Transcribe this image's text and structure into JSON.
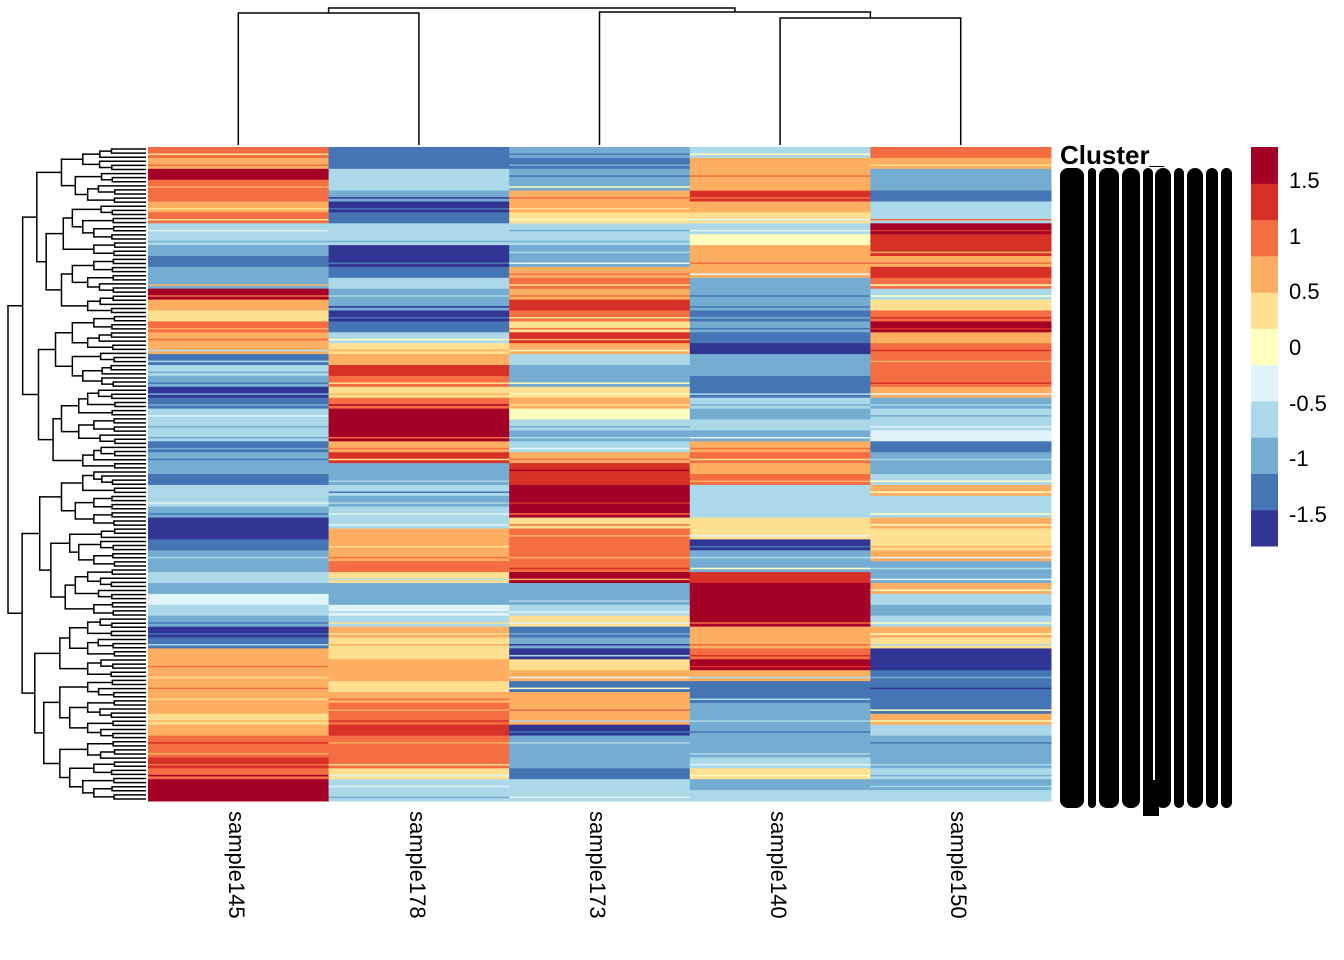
{
  "chart_data": {
    "type": "heatmap",
    "title": "",
    "columns": [
      "sample145",
      "sample178",
      "sample173",
      "sample140",
      "sample150"
    ],
    "row_label_prefix": "Cluster_",
    "row_labels_note_visible": "overlapping illegible row labels",
    "color_scale": {
      "min": -1.78,
      "max": 1.79,
      "colors": [
        "#313695",
        "#4575B4",
        "#74ADD1",
        "#ABD9E9",
        "#E0F3F8",
        "#FFFFBF",
        "#FEE090",
        "#FDAE61",
        "#F46D43",
        "#D73027",
        "#A50026"
      ]
    },
    "legend": {
      "position": "right",
      "ticks": [
        1.5,
        1,
        0.5,
        0,
        -0.5,
        -1,
        -1.5
      ],
      "tick_labels": [
        "1.5",
        "1",
        "0.5",
        "0",
        "-0.5",
        "-1",
        "-1.5"
      ]
    },
    "column_dendrogram": true,
    "row_dendrogram": true,
    "values": [
      [
        1.0,
        0.5,
        1.7,
        0.9,
        0.9,
        0.5,
        1.0,
        -0.6,
        -0.5,
        -1.0,
        -1.3,
        -1.0,
        -0.9,
        1.7,
        0.7,
        0.3,
        0.9,
        0.6,
        0.6,
        -1.3,
        -0.6,
        -1.0,
        -1.5,
        -1.2,
        -0.7,
        -0.5,
        -0.8,
        -1.3,
        -1.1,
        -1.0,
        -1.2,
        -0.7,
        -0.5,
        -0.9,
        -1.6,
        -1.8,
        -1.4,
        -0.9,
        -1.0,
        -0.8,
        -1.0,
        -0.2,
        -0.7,
        -1.0,
        -1.5,
        -1.2,
        0.5,
        0.6,
        0.5,
        0.7,
        0.7,
        0.8,
        0.3,
        0.6,
        1.0,
        1.0,
        1.2,
        1.0,
        1.7,
        1.7
      ],
      [
        -1.2,
        -1.4,
        -0.6,
        -0.8,
        -1.0,
        -1.7,
        -1.2,
        -0.6,
        -0.8,
        -1.5,
        -1.7,
        -1.4,
        -0.6,
        -0.9,
        -1.0,
        -1.7,
        -1.2,
        -0.7,
        0.4,
        0.6,
        1.2,
        0.9,
        0.3,
        1.1,
        1.8,
        1.8,
        1.8,
        0.6,
        1.2,
        -0.9,
        -1.0,
        -0.8,
        -0.9,
        -0.6,
        -0.8,
        0.6,
        0.5,
        0.7,
        1.0,
        0.3,
        -1.1,
        -0.9,
        -0.4,
        -0.8,
        0.6,
        0.4,
        0.3,
        0.7,
        0.6,
        0.3,
        0.8,
        1.0,
        1.1,
        1.2,
        1.0,
        0.9,
        0.9,
        0.2,
        -0.6,
        -0.8
      ],
      [
        -0.9,
        -1.2,
        -1.0,
        -0.9,
        0.7,
        0.8,
        0.3,
        -0.6,
        -0.8,
        -1.0,
        -0.9,
        0.6,
        0.9,
        0.6,
        1.2,
        1.0,
        0.2,
        1.3,
        0.7,
        -0.8,
        -1.0,
        -0.9,
        0.3,
        0.5,
        0.0,
        -0.8,
        -1.0,
        -0.8,
        0.7,
        1.2,
        1.2,
        1.7,
        1.7,
        1.7,
        0.4,
        0.9,
        1.0,
        0.9,
        1.0,
        1.7,
        -1.0,
        -0.9,
        -0.5,
        0.3,
        -1.2,
        -1.1,
        -1.8,
        0.4,
        0.6,
        -1.2,
        0.7,
        0.6,
        0.8,
        -1.5,
        -1.0,
        -0.9,
        -0.9,
        -1.2,
        -0.7,
        -0.6
      ],
      [
        -0.8,
        0.5,
        0.8,
        0.6,
        1.2,
        0.6,
        0.3,
        -0.8,
        0.0,
        0.8,
        0.6,
        0.8,
        -1.0,
        -1.0,
        -1.1,
        -1.3,
        -1.0,
        -1.2,
        -1.8,
        -0.9,
        -1.1,
        -1.3,
        -1.2,
        -0.6,
        -0.9,
        -0.8,
        -1.0,
        0.6,
        0.9,
        0.5,
        1.0,
        -0.6,
        -0.5,
        -0.8,
        0.3,
        0.2,
        -1.5,
        -1.0,
        -0.9,
        1.2,
        1.7,
        1.7,
        1.7,
        1.7,
        0.7,
        0.5,
        1.0,
        1.7,
        0.8,
        -1.3,
        -1.2,
        -1.0,
        -0.9,
        -0.9,
        -1.0,
        -1.1,
        -0.6,
        0.4,
        -0.9,
        -0.5
      ],
      [
        0.9,
        0.8,
        -0.9,
        -1.0,
        -1.3,
        -0.5,
        -0.7,
        1.8,
        1.2,
        1.3,
        0.8,
        1.2,
        0.9,
        -0.8,
        0.3,
        1.0,
        1.5,
        0.6,
        1.1,
        0.9,
        1.1,
        1.0,
        0.8,
        -0.9,
        -0.8,
        -0.6,
        -0.3,
        -1.2,
        -1.0,
        -0.9,
        -0.6,
        0.5,
        -0.8,
        -0.5,
        0.5,
        0.4,
        0.2,
        0.5,
        -0.9,
        -1.0,
        0.7,
        -0.8,
        -0.9,
        -0.8,
        0.5,
        0.3,
        -1.8,
        -1.8,
        -1.2,
        -1.3,
        -1.4,
        -1.2,
        0.6,
        -0.5,
        -1.0,
        -0.9,
        -1.0,
        -0.8,
        -0.9,
        -0.5
      ]
    ]
  }
}
